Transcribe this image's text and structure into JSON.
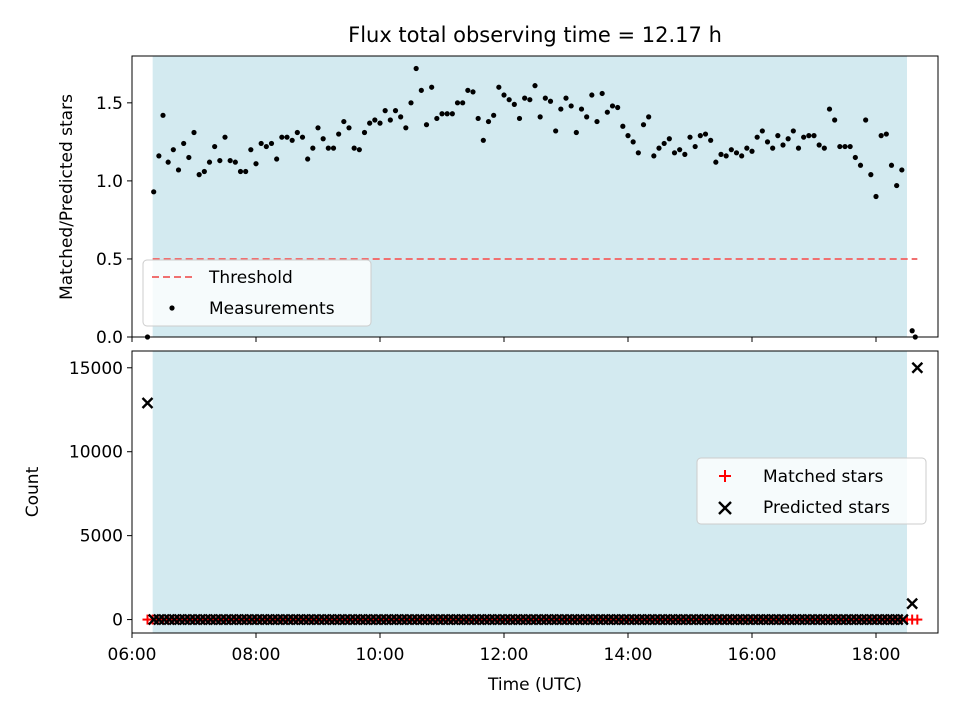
{
  "chart_data": [
    {
      "type": "scatter",
      "title": "Flux total observing time = 12.17 h",
      "xlabel": "",
      "ylabel": "Matched/Predicted stars",
      "xlim": [
        "06:00",
        "19:00"
      ],
      "ylim": [
        0,
        1.8
      ],
      "yticks": [
        "0.0",
        "0.5",
        "1.0",
        "1.5"
      ],
      "yticks_values": [
        0.0,
        0.5,
        1.0,
        1.5
      ],
      "grid": false,
      "observing_window": {
        "start": "06:20",
        "end": "18:30",
        "color": "#d3eaf0"
      },
      "threshold": {
        "name": "Threshold",
        "y": 0.5,
        "x_start": "06:20",
        "x_end": "18:40",
        "color": "#f07070",
        "style": "dashed"
      },
      "series": [
        {
          "name": "Measurements",
          "color": "#000000",
          "x": [
            "06:15",
            "06:21",
            "06:26",
            "06:30",
            "06:35",
            "06:40",
            "06:45",
            "06:50",
            "06:55",
            "07:00",
            "07:05",
            "07:10",
            "07:15",
            "07:20",
            "07:25",
            "07:30",
            "07:35",
            "07:40",
            "07:45",
            "07:50",
            "07:55",
            "08:00",
            "08:05",
            "08:10",
            "08:15",
            "08:20",
            "08:25",
            "08:30",
            "08:35",
            "08:40",
            "08:45",
            "08:50",
            "08:55",
            "09:00",
            "09:05",
            "09:10",
            "09:15",
            "09:20",
            "09:25",
            "09:30",
            "09:35",
            "09:40",
            "09:45",
            "09:50",
            "09:55",
            "10:00",
            "10:05",
            "10:10",
            "10:15",
            "10:20",
            "10:25",
            "10:30",
            "10:35",
            "10:40",
            "10:45",
            "10:50",
            "10:55",
            "11:00",
            "11:05",
            "11:10",
            "11:15",
            "11:20",
            "11:25",
            "11:30",
            "11:35",
            "11:40",
            "11:45",
            "11:50",
            "11:55",
            "12:00",
            "12:05",
            "12:10",
            "12:15",
            "12:20",
            "12:25",
            "12:30",
            "12:35",
            "12:40",
            "12:45",
            "12:50",
            "12:55",
            "13:00",
            "13:05",
            "13:10",
            "13:15",
            "13:20",
            "13:25",
            "13:30",
            "13:35",
            "13:40",
            "13:45",
            "13:50",
            "13:55",
            "14:00",
            "14:05",
            "14:10",
            "14:15",
            "14:20",
            "14:25",
            "14:30",
            "14:35",
            "14:40",
            "14:45",
            "14:50",
            "14:55",
            "15:00",
            "15:05",
            "15:10",
            "15:15",
            "15:20",
            "15:25",
            "15:30",
            "15:35",
            "15:40",
            "15:45",
            "15:50",
            "15:55",
            "16:00",
            "16:05",
            "16:10",
            "16:15",
            "16:20",
            "16:25",
            "16:30",
            "16:35",
            "16:40",
            "16:45",
            "16:50",
            "16:55",
            "17:00",
            "17:05",
            "17:10",
            "17:15",
            "17:20",
            "17:25",
            "17:30",
            "17:35",
            "17:40",
            "17:45",
            "17:50",
            "17:55",
            "18:00",
            "18:05",
            "18:10",
            "18:15",
            "18:20",
            "18:25",
            "18:35",
            "18:38"
          ],
          "y": [
            0.0,
            0.93,
            1.16,
            1.42,
            1.12,
            1.2,
            1.07,
            1.24,
            1.15,
            1.31,
            1.04,
            1.06,
            1.12,
            1.22,
            1.13,
            1.28,
            1.13,
            1.12,
            1.06,
            1.06,
            1.2,
            1.11,
            1.24,
            1.22,
            1.24,
            1.14,
            1.28,
            1.28,
            1.26,
            1.31,
            1.28,
            1.14,
            1.21,
            1.34,
            1.27,
            1.21,
            1.21,
            1.3,
            1.38,
            1.34,
            1.21,
            1.2,
            1.31,
            1.37,
            1.39,
            1.37,
            1.45,
            1.39,
            1.45,
            1.41,
            1.34,
            1.5,
            1.72,
            1.58,
            1.36,
            1.6,
            1.4,
            1.43,
            1.43,
            1.43,
            1.5,
            1.5,
            1.58,
            1.57,
            1.4,
            1.26,
            1.38,
            1.42,
            1.6,
            1.55,
            1.52,
            1.49,
            1.4,
            1.53,
            1.52,
            1.61,
            1.41,
            1.53,
            1.51,
            1.32,
            1.46,
            1.53,
            1.48,
            1.31,
            1.46,
            1.41,
            1.55,
            1.38,
            1.56,
            1.44,
            1.48,
            1.47,
            1.35,
            1.29,
            1.25,
            1.18,
            1.36,
            1.41,
            1.16,
            1.21,
            1.24,
            1.27,
            1.18,
            1.2,
            1.17,
            1.28,
            1.22,
            1.29,
            1.3,
            1.26,
            1.12,
            1.17,
            1.16,
            1.2,
            1.18,
            1.16,
            1.21,
            1.19,
            1.28,
            1.32,
            1.25,
            1.21,
            1.29,
            1.23,
            1.27,
            1.32,
            1.21,
            1.28,
            1.29,
            1.29,
            1.23,
            1.21,
            1.46,
            1.39,
            1.22,
            1.22,
            1.22,
            1.15,
            1.1,
            1.39,
            1.04,
            0.9,
            1.29,
            1.3,
            1.1,
            0.97,
            1.07,
            0.04,
            0.0
          ]
        }
      ],
      "legend": {
        "placement": "lower-left",
        "entries": [
          "Threshold",
          "Measurements"
        ]
      }
    },
    {
      "type": "scatter",
      "title": "",
      "xlabel": "Time (UTC)",
      "ylabel": "Count",
      "xlim": [
        "06:00",
        "19:00"
      ],
      "xticks": [
        "06:00",
        "08:00",
        "10:00",
        "12:00",
        "14:00",
        "16:00",
        "18:00"
      ],
      "ylim": [
        -800,
        16000
      ],
      "yticks": [
        "0",
        "5000",
        "10000",
        "15000"
      ],
      "yticks_values": [
        0,
        5000,
        10000,
        15000
      ],
      "grid": false,
      "observing_window": {
        "start": "06:20",
        "end": "18:30",
        "color": "#d3eaf0"
      },
      "series": [
        {
          "name": "Matched stars",
          "color": "#ff0000",
          "marker": "plus",
          "x_range": [
            "06:15",
            "18:40"
          ],
          "step_minutes": 5,
          "typical_y": 0
        },
        {
          "name": "Predicted stars",
          "color": "#000000",
          "marker": "x",
          "x_range": [
            "06:21",
            "18:30"
          ],
          "step_minutes": 5,
          "typical_y": 0,
          "outliers": [
            {
              "x": "06:15",
              "y": 12900
            },
            {
              "x": "18:35",
              "y": 950
            },
            {
              "x": "18:40",
              "y": 15000
            }
          ]
        }
      ],
      "legend": {
        "placement": "center-right",
        "entries": [
          "Matched stars",
          "Predicted stars"
        ]
      }
    }
  ]
}
